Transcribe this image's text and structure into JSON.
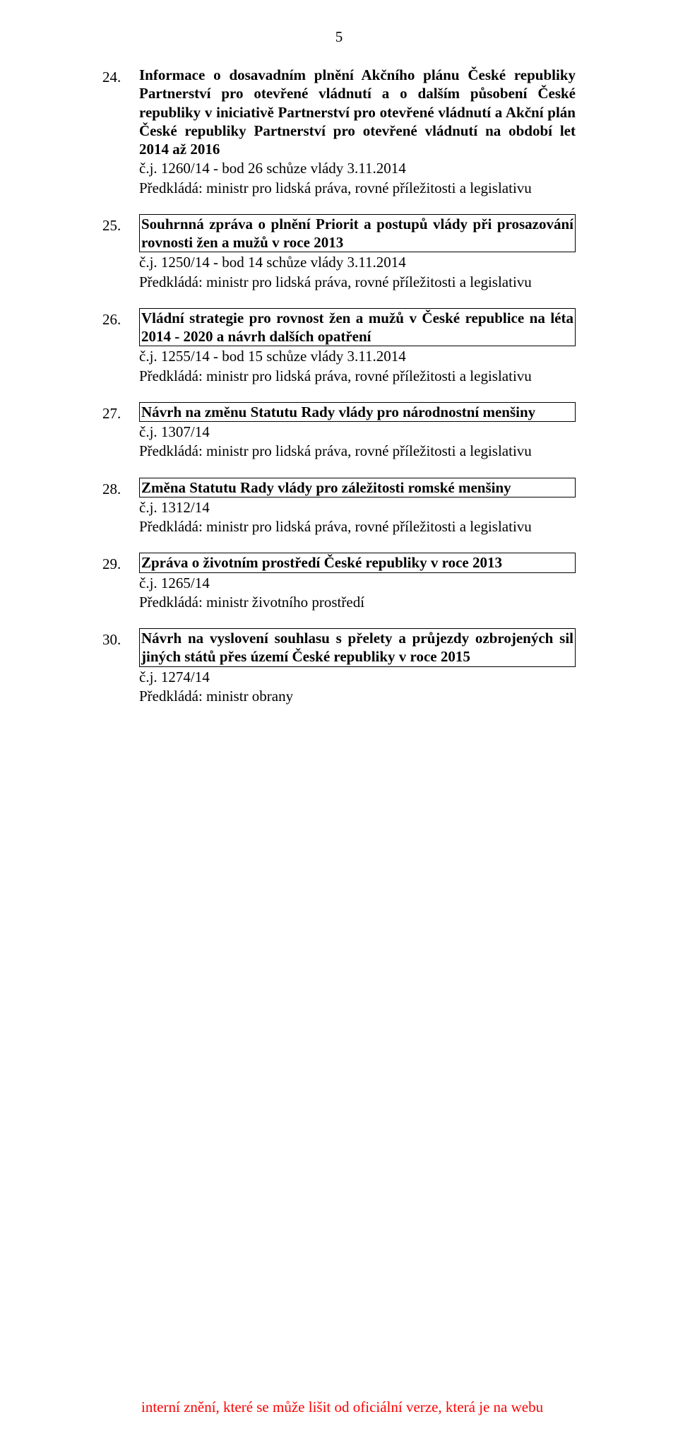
{
  "page_number": "5",
  "footer_color": "#ff0000",
  "footer_text": "interní znění, které se může lišit od oficiální verze, která je na webu",
  "items": [
    {
      "num": "24.",
      "title": "Informace o dosavadním plnění Akčního plánu České republiky Partnerství pro otevřené vládnutí a o dalším působení České republiky v iniciativě Partnerství pro otevřené vládnutí a Akční plán České republiky Partnerství pro otevřené vládnutí na období let 2014 až 2016",
      "ref": "č.j. 1260/14 - bod 26 schůze vlády 3.11.2014",
      "submitter": "Předkládá: ministr pro lidská práva, rovné příležitosti a legislativu",
      "boxed": false
    },
    {
      "num": "25.",
      "title": "Souhrnná zpráva o plnění Priorit a postupů vlády při prosazování rovnosti žen a mužů v roce 2013",
      "ref": "č.j. 1250/14 - bod 14 schůze vlády 3.11.2014",
      "submitter": "Předkládá: ministr pro lidská práva, rovné příležitosti a legislativu",
      "boxed": true
    },
    {
      "num": "26.",
      "title": "Vládní strategie pro rovnost žen a mužů v České republice na léta 2014 - 2020 a návrh dalších opatření",
      "ref": "č.j. 1255/14 - bod 15 schůze vlády 3.11.2014",
      "submitter": "Předkládá: ministr pro lidská práva, rovné příležitosti a legislativu",
      "boxed": true
    },
    {
      "num": "27.",
      "title": "Návrh na změnu Statutu Rady vlády pro národnostní menšiny",
      "ref": "č.j. 1307/14",
      "submitter": "Předkládá: ministr pro lidská práva, rovné příležitosti a legislativu",
      "boxed": true
    },
    {
      "num": "28.",
      "title": "Změna Statutu Rady vlády pro záležitosti romské menšiny",
      "ref": "č.j. 1312/14",
      "submitter": "Předkládá: ministr pro lidská práva, rovné příležitosti a legislativu",
      "boxed": true
    },
    {
      "num": "29.",
      "title": "Zpráva o životním prostředí České republiky v roce 2013",
      "ref": "č.j. 1265/14",
      "submitter": "Předkládá: ministr životního prostředí",
      "boxed": true
    },
    {
      "num": "30.",
      "title": "Návrh na vyslovení souhlasu s přelety a prů­jezdy ozbrojených sil jiných států přes území České republiky v roce 2015",
      "ref": "č.j. 1274/14",
      "submitter": "Předkládá: ministr obrany",
      "boxed": true
    }
  ]
}
